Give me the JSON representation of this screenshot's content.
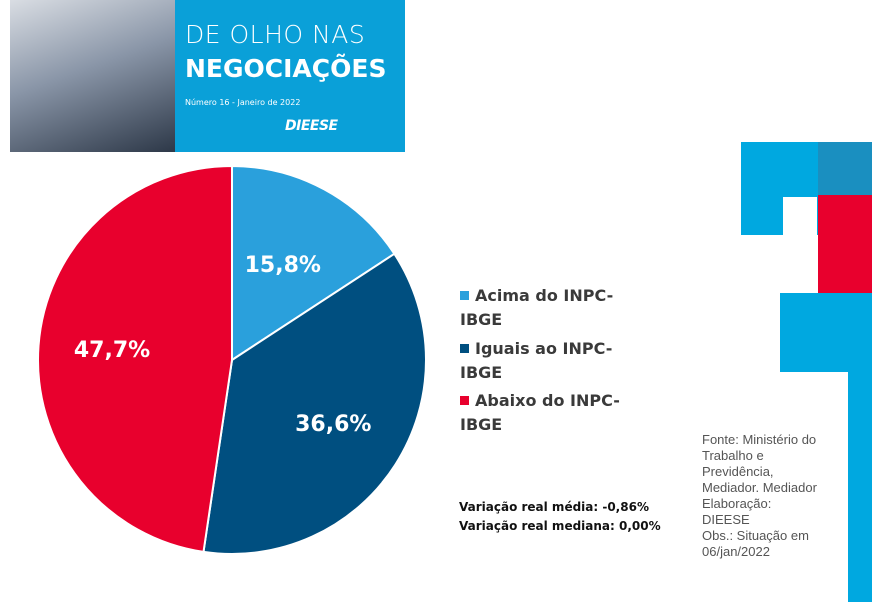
{
  "header": {
    "title_line1": "DE OLHO NAS",
    "title_line2": "NEGOCIAÇÕES",
    "issue": "Número 16 - Janeiro de 2022",
    "logo": "DIEESE"
  },
  "chart_data": {
    "type": "pie",
    "categories": [
      "Acima do INPC-IBGE",
      "Iguais ao INPC-IBGE",
      "Abaixo do INPC-IBGE"
    ],
    "values": [
      15.8,
      36.6,
      47.7
    ],
    "value_labels": [
      "15,8%",
      "36,6%",
      "47,7%"
    ],
    "colors": [
      "#2aa0dc",
      "#004f80",
      "#e8002d"
    ],
    "notes": [
      "Variação real média: -0,86%",
      "Variação real mediana: 0,00%"
    ],
    "source": [
      "Fonte: Ministério do Trabalho e Previdência, Mediador. Mediador",
      "Elaboração: DIEESE",
      "Obs.: Situação em 06/jan/2022"
    ]
  }
}
